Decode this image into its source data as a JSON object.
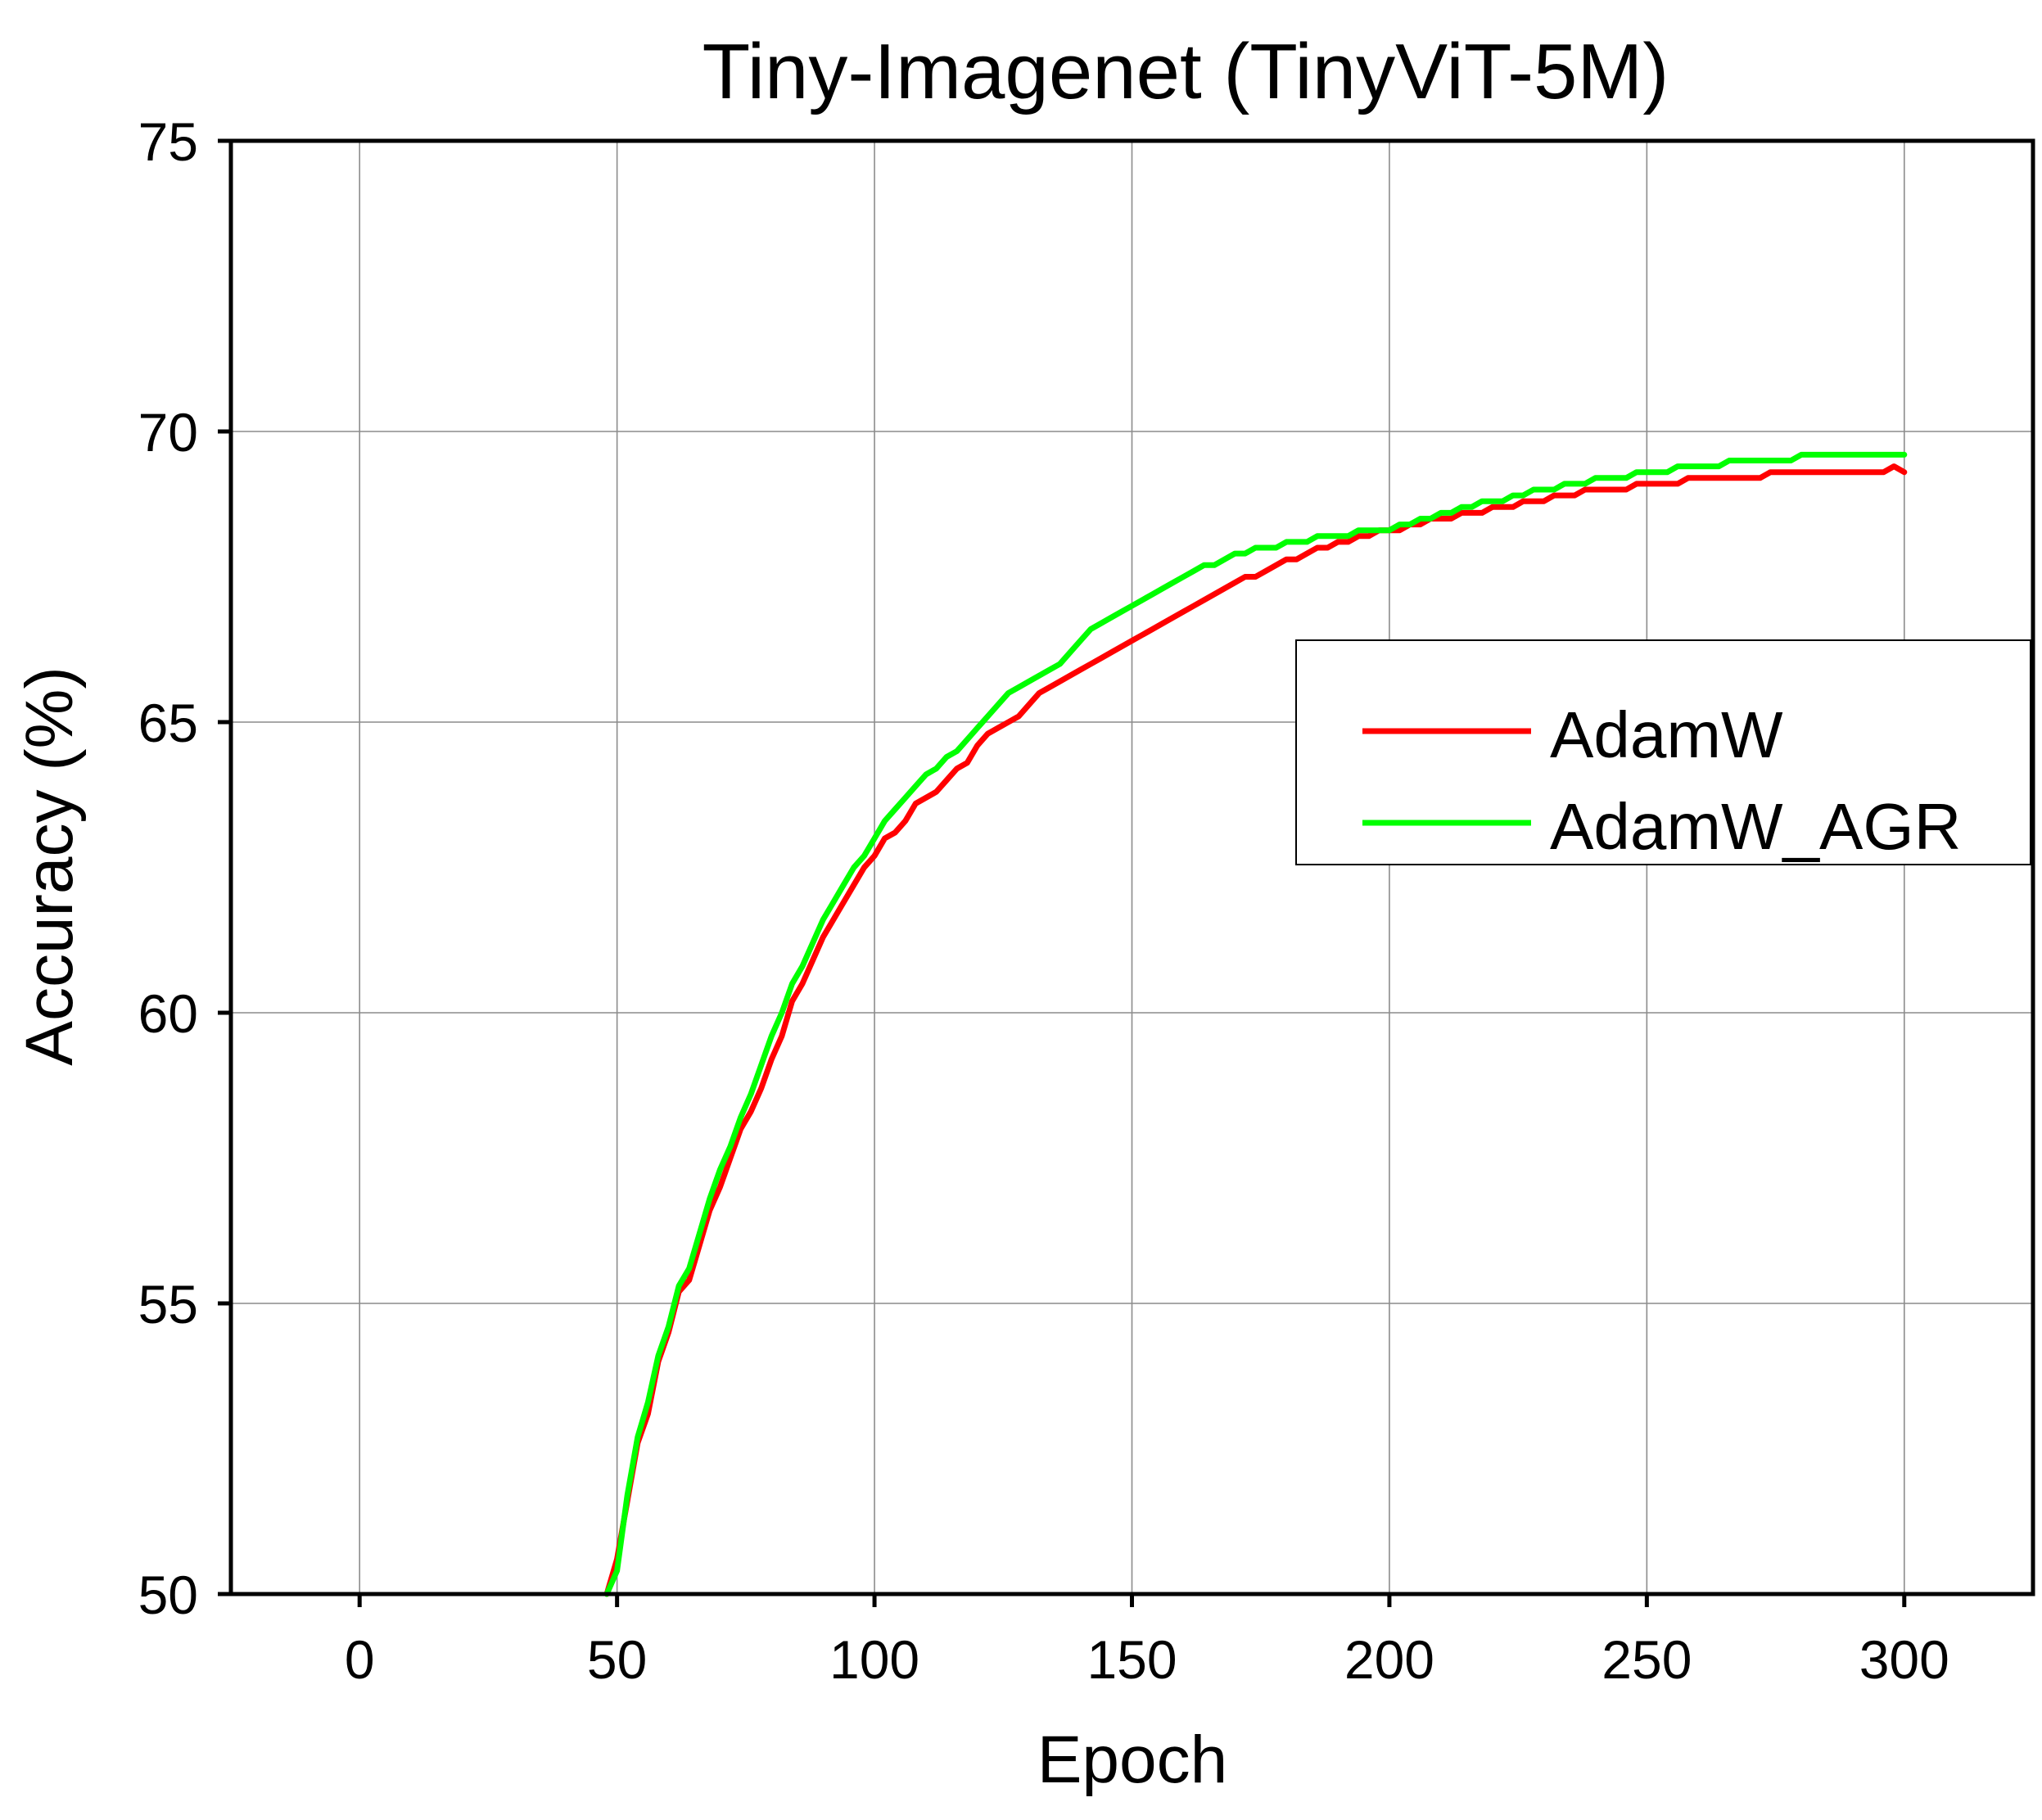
{
  "chart_data": {
    "type": "line",
    "title": "Tiny-Imagenet (TinyViT-5M)",
    "xlabel": "Epoch",
    "ylabel": "Accuracy (%)",
    "xlim": [
      -25,
      325
    ],
    "ylim": [
      50,
      75
    ],
    "xticks": [
      "0",
      "50",
      "100",
      "150",
      "200",
      "250",
      "300"
    ],
    "yticks": [
      "50",
      "55",
      "60",
      "65",
      "70",
      "75"
    ],
    "grid": true,
    "legend_position": "right",
    "series": [
      {
        "name": "AdamW",
        "color": "#ff0000",
        "x": [
          48,
          50,
          52,
          54,
          56,
          58,
          60,
          62,
          64,
          66,
          68,
          70,
          72,
          74,
          76,
          78,
          80,
          82,
          84,
          86,
          88,
          90,
          92,
          94,
          96,
          98,
          100,
          102,
          104,
          106,
          108,
          110,
          112,
          114,
          116,
          118,
          120,
          122,
          124,
          126,
          128,
          130,
          132,
          134,
          136,
          138,
          140,
          142,
          144,
          146,
          148,
          150,
          152,
          154,
          156,
          158,
          160,
          162,
          164,
          166,
          168,
          170,
          172,
          174,
          176,
          178,
          180,
          182,
          184,
          186,
          188,
          190,
          192,
          194,
          196,
          198,
          200,
          202,
          204,
          206,
          208,
          210,
          212,
          214,
          216,
          218,
          220,
          222,
          224,
          226,
          228,
          230,
          232,
          234,
          236,
          238,
          240,
          242,
          244,
          246,
          248,
          250,
          252,
          254,
          256,
          258,
          260,
          262,
          264,
          266,
          268,
          270,
          272,
          274,
          276,
          278,
          280,
          282,
          284,
          286,
          288,
          290,
          292,
          294,
          296,
          298,
          300
        ],
        "y": [
          50.0,
          50.6,
          51.6,
          52.6,
          53.1,
          54.0,
          54.5,
          55.2,
          55.4,
          56.0,
          56.6,
          57.0,
          57.5,
          58.0,
          58.3,
          58.7,
          59.2,
          59.6,
          60.2,
          60.5,
          60.9,
          61.3,
          61.6,
          61.9,
          62.2,
          62.5,
          62.7,
          63.0,
          63.1,
          63.3,
          63.6,
          63.7,
          63.8,
          64.0,
          64.2,
          64.3,
          64.6,
          64.8,
          64.9,
          65.0,
          65.1,
          65.3,
          65.5,
          65.6,
          65.7,
          65.8,
          65.9,
          66.0,
          66.1,
          66.2,
          66.3,
          66.4,
          66.5,
          66.6,
          66.7,
          66.8,
          66.9,
          67.0,
          67.1,
          67.2,
          67.3,
          67.4,
          67.5,
          67.5,
          67.6,
          67.7,
          67.8,
          67.8,
          67.9,
          68.0,
          68.0,
          68.1,
          68.1,
          68.2,
          68.2,
          68.3,
          68.3,
          68.3,
          68.4,
          68.4,
          68.5,
          68.5,
          68.5,
          68.6,
          68.6,
          68.6,
          68.7,
          68.7,
          68.7,
          68.8,
          68.8,
          68.8,
          68.9,
          68.9,
          68.9,
          69.0,
          69.0,
          69.0,
          69.0,
          69.0,
          69.1,
          69.1,
          69.1,
          69.1,
          69.1,
          69.2,
          69.2,
          69.2,
          69.2,
          69.2,
          69.2,
          69.2,
          69.2,
          69.3,
          69.3,
          69.3,
          69.3,
          69.3,
          69.3,
          69.3,
          69.3,
          69.3,
          69.3,
          69.3,
          69.3,
          69.4,
          69.3
        ]
      },
      {
        "name": "AdamW_AGR",
        "color": "#00ff00",
        "x": [
          48,
          50,
          52,
          54,
          56,
          58,
          60,
          62,
          64,
          66,
          68,
          70,
          72,
          74,
          76,
          78,
          80,
          82,
          84,
          86,
          88,
          90,
          92,
          94,
          96,
          98,
          100,
          102,
          104,
          106,
          108,
          110,
          112,
          114,
          116,
          118,
          120,
          122,
          124,
          126,
          128,
          130,
          132,
          134,
          136,
          138,
          140,
          142,
          144,
          146,
          148,
          150,
          152,
          154,
          156,
          158,
          160,
          162,
          164,
          166,
          168,
          170,
          172,
          174,
          176,
          178,
          180,
          182,
          184,
          186,
          188,
          190,
          192,
          194,
          196,
          198,
          200,
          202,
          204,
          206,
          208,
          210,
          212,
          214,
          216,
          218,
          220,
          222,
          224,
          226,
          228,
          230,
          232,
          234,
          236,
          238,
          240,
          242,
          244,
          246,
          248,
          250,
          252,
          254,
          256,
          258,
          260,
          262,
          264,
          266,
          268,
          270,
          272,
          274,
          276,
          278,
          280,
          282,
          284,
          286,
          288,
          290,
          292,
          294,
          296,
          298,
          300
        ],
        "y": [
          50.0,
          50.4,
          51.7,
          52.7,
          53.3,
          54.1,
          54.6,
          55.3,
          55.6,
          56.2,
          56.8,
          57.3,
          57.7,
          58.2,
          58.6,
          59.1,
          59.6,
          60.0,
          60.5,
          60.8,
          61.2,
          61.6,
          61.9,
          62.2,
          62.5,
          62.7,
          63.0,
          63.3,
          63.5,
          63.7,
          63.9,
          64.1,
          64.2,
          64.4,
          64.5,
          64.7,
          64.9,
          65.1,
          65.3,
          65.5,
          65.6,
          65.7,
          65.8,
          65.9,
          66.0,
          66.2,
          66.4,
          66.6,
          66.7,
          66.8,
          66.9,
          67.0,
          67.1,
          67.2,
          67.3,
          67.4,
          67.5,
          67.6,
          67.7,
          67.7,
          67.8,
          67.9,
          67.9,
          68.0,
          68.0,
          68.0,
          68.1,
          68.1,
          68.1,
          68.2,
          68.2,
          68.2,
          68.2,
          68.3,
          68.3,
          68.3,
          68.3,
          68.4,
          68.4,
          68.5,
          68.5,
          68.6,
          68.6,
          68.7,
          68.7,
          68.8,
          68.8,
          68.8,
          68.9,
          68.9,
          69.0,
          69.0,
          69.0,
          69.1,
          69.1,
          69.1,
          69.2,
          69.2,
          69.2,
          69.2,
          69.3,
          69.3,
          69.3,
          69.3,
          69.4,
          69.4,
          69.4,
          69.4,
          69.4,
          69.5,
          69.5,
          69.5,
          69.5,
          69.5,
          69.5,
          69.5,
          69.6,
          69.6,
          69.6,
          69.6,
          69.6,
          69.6,
          69.6,
          69.6,
          69.6,
          69.6,
          69.6
        ]
      }
    ]
  }
}
